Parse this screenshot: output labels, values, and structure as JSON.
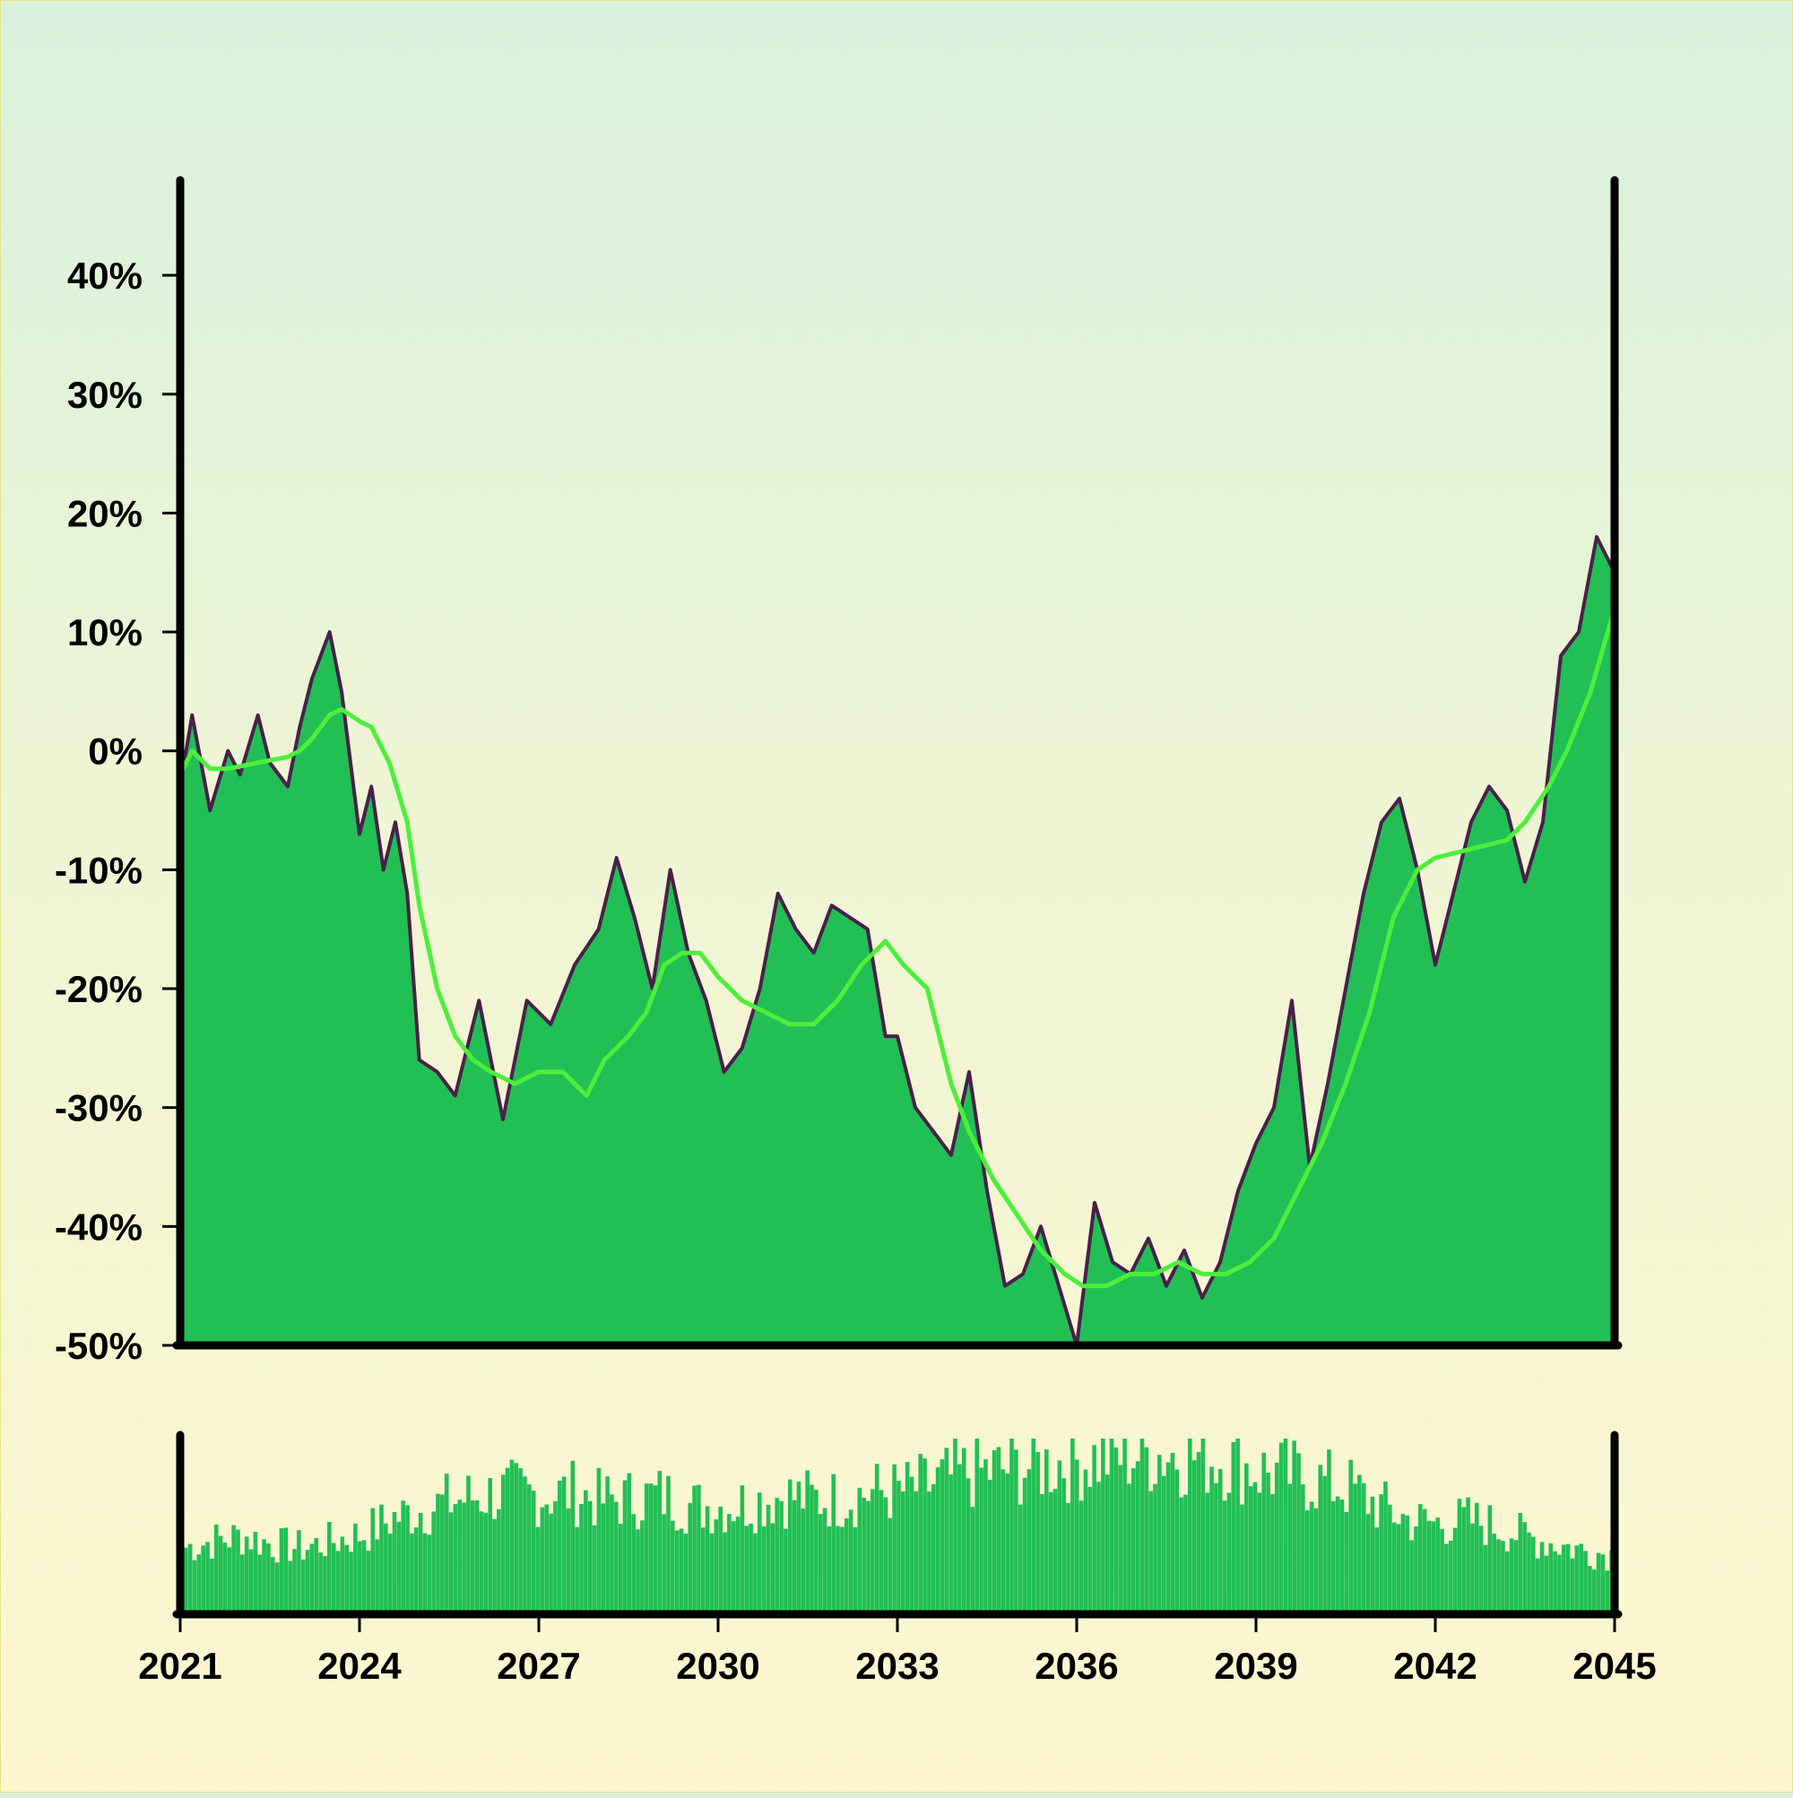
{
  "chart_data": [
    {
      "type": "area",
      "title": "",
      "xlabel": "",
      "ylabel": "",
      "xlim": [
        2021,
        2045
      ],
      "ylim": [
        -50,
        48
      ],
      "y_ticks": [
        40,
        30,
        20,
        10,
        0,
        -10,
        -20,
        -30,
        -40,
        -50
      ],
      "y_tick_labels": [
        "40%",
        "30%",
        "20%",
        "10%",
        "0%",
        "-10%",
        "-20%",
        "-30%",
        "-40%",
        "-50%"
      ],
      "grid": false,
      "legend": "none",
      "series": [
        {
          "role": "value",
          "x": [
            2021.0,
            2021.2,
            2021.5,
            2021.8,
            2022.0,
            2022.3,
            2022.5,
            2022.8,
            2023.0,
            2023.2,
            2023.5,
            2023.7,
            2024.0,
            2024.2,
            2024.4,
            2024.6,
            2024.8,
            2025.0,
            2025.3,
            2025.6,
            2026.0,
            2026.4,
            2026.8,
            2027.2,
            2027.6,
            2028.0,
            2028.3,
            2028.6,
            2028.9,
            2029.2,
            2029.5,
            2029.8,
            2030.1,
            2030.4,
            2030.7,
            2031.0,
            2031.3,
            2031.6,
            2031.9,
            2032.2,
            2032.5,
            2032.8,
            2033.0,
            2033.3,
            2033.6,
            2033.9,
            2034.2,
            2034.5,
            2034.8,
            2035.1,
            2035.4,
            2035.7,
            2036.0,
            2036.3,
            2036.6,
            2036.9,
            2037.2,
            2037.5,
            2037.8,
            2038.1,
            2038.4,
            2038.7,
            2039.0,
            2039.3,
            2039.6,
            2039.9,
            2040.2,
            2040.5,
            2040.8,
            2041.1,
            2041.4,
            2041.7,
            2042.0,
            2042.3,
            2042.6,
            2042.9,
            2043.2,
            2043.5,
            2043.8,
            2044.1,
            2044.4,
            2044.7,
            2045.0
          ],
          "y": [
            -3,
            3,
            -5,
            0,
            -2,
            3,
            -1,
            -3,
            2,
            6,
            10,
            5,
            -7,
            -3,
            -10,
            -6,
            -12,
            -26,
            -27,
            -29,
            -21,
            -31,
            -21,
            -23,
            -18,
            -15,
            -9,
            -14,
            -20,
            -10,
            -17,
            -21,
            -27,
            -25,
            -20,
            -12,
            -15,
            -17,
            -13,
            -14,
            -15,
            -24,
            -24,
            -30,
            -32,
            -34,
            -27,
            -37,
            -45,
            -44,
            -40,
            -45,
            -50,
            -38,
            -43,
            -44,
            -41,
            -45,
            -42,
            -46,
            -43,
            -37,
            -33,
            -30,
            -21,
            -35,
            -28,
            -20,
            -12,
            -6,
            -4,
            -10,
            -18,
            -12,
            -6,
            -3,
            -5,
            -11,
            -6,
            8,
            10,
            18,
            15
          ]
        },
        {
          "role": "moving-average",
          "x": [
            2021.0,
            2021.2,
            2021.5,
            2021.8,
            2022.0,
            2022.3,
            2022.5,
            2022.8,
            2023.0,
            2023.2,
            2023.5,
            2023.7,
            2024.0,
            2024.2,
            2024.5,
            2024.8,
            2025.0,
            2025.3,
            2025.6,
            2025.9,
            2026.2,
            2026.6,
            2027.0,
            2027.4,
            2027.8,
            2028.1,
            2028.5,
            2028.8,
            2029.1,
            2029.4,
            2029.7,
            2030.0,
            2030.4,
            2030.8,
            2031.2,
            2031.6,
            2032.0,
            2032.4,
            2032.8,
            2033.1,
            2033.5,
            2033.9,
            2034.2,
            2034.6,
            2035.0,
            2035.4,
            2035.8,
            2036.1,
            2036.5,
            2036.9,
            2037.3,
            2037.7,
            2038.1,
            2038.5,
            2038.9,
            2039.3,
            2039.7,
            2040.1,
            2040.5,
            2040.9,
            2041.3,
            2041.7,
            2042.0,
            2042.4,
            2042.8,
            2043.2,
            2043.5,
            2043.9,
            2044.2,
            2044.6,
            2045.0
          ],
          "y": [
            -2,
            0,
            -1.5,
            -1.5,
            -1.3,
            -1,
            -0.8,
            -0.5,
            0,
            1,
            3,
            3.5,
            2.5,
            2,
            -1,
            -6,
            -13,
            -20,
            -24,
            -26,
            -27,
            -28,
            -27,
            -27,
            -29,
            -26,
            -24,
            -22,
            -18,
            -17,
            -17,
            -19,
            -21,
            -22,
            -23,
            -23,
            -21,
            -18,
            -16,
            -18,
            -20,
            -28,
            -32,
            -36,
            -39,
            -42,
            -44,
            -45,
            -45,
            -44,
            -44,
            -43,
            -44,
            -44,
            -43,
            -41,
            -37,
            -33,
            -28,
            -22,
            -14,
            -10,
            -9,
            -8.5,
            -8,
            -7.5,
            -6,
            -3,
            0,
            5,
            12
          ]
        },
        {
          "role": "volume",
          "x": [
            2021,
            2021.5,
            2022,
            2022.5,
            2023,
            2023.5,
            2024,
            2024.5,
            2025,
            2025.5,
            2026,
            2026.5,
            2027,
            2027.5,
            2028,
            2028.5,
            2029,
            2029.5,
            2030,
            2030.5,
            2031,
            2031.5,
            2032,
            2032.5,
            2033,
            2033.5,
            2034,
            2034.5,
            2035,
            2035.5,
            2036,
            2036.5,
            2037,
            2037.5,
            2038,
            2038.5,
            2039,
            2039.5,
            2040,
            2040.5,
            2041,
            2041.5,
            2042,
            2042.5,
            2043,
            2043.5,
            2044,
            2044.5,
            2045
          ],
          "values": [
            0.38,
            0.42,
            0.45,
            0.4,
            0.38,
            0.42,
            0.46,
            0.55,
            0.6,
            0.65,
            0.68,
            0.7,
            0.68,
            0.7,
            0.65,
            0.66,
            0.68,
            0.62,
            0.62,
            0.64,
            0.68,
            0.66,
            0.66,
            0.7,
            0.7,
            0.74,
            0.8,
            0.82,
            0.84,
            0.86,
            0.88,
            0.9,
            0.92,
            0.92,
            0.9,
            0.88,
            0.82,
            0.8,
            0.76,
            0.72,
            0.62,
            0.54,
            0.52,
            0.54,
            0.5,
            0.44,
            0.4,
            0.36,
            0.34
          ]
        }
      ],
      "x_ticks": [
        2021,
        2024,
        2027,
        2030,
        2033,
        2036,
        2039,
        2042,
        2045
      ],
      "x_tick_labels": [
        "2021",
        "2024",
        "2027",
        "2030",
        "2033",
        "2036",
        "2039",
        "2042",
        "2045"
      ],
      "colors": {
        "area_fill": "#22bf55",
        "value_line": "#4a1f4a",
        "moving_average_line": "#4cef3c",
        "volume_bars": "#22bf55",
        "axes": "#000000"
      }
    }
  ]
}
